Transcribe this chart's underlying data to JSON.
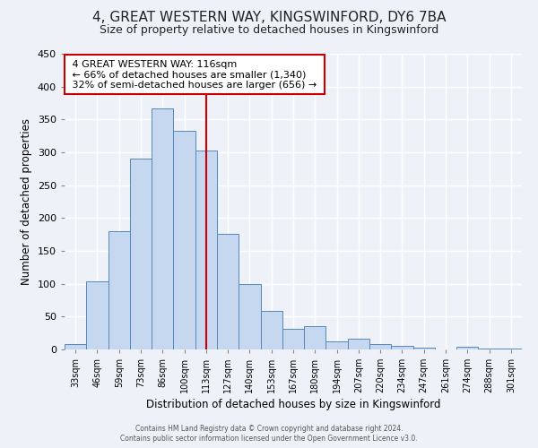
{
  "title": "4, GREAT WESTERN WAY, KINGSWINFORD, DY6 7BA",
  "subtitle": "Size of property relative to detached houses in Kingswinford",
  "xlabel": "Distribution of detached houses by size in Kingswinford",
  "ylabel": "Number of detached properties",
  "bar_labels": [
    "33sqm",
    "46sqm",
    "59sqm",
    "73sqm",
    "86sqm",
    "100sqm",
    "113sqm",
    "127sqm",
    "140sqm",
    "153sqm",
    "167sqm",
    "180sqm",
    "194sqm",
    "207sqm",
    "220sqm",
    "234sqm",
    "247sqm",
    "261sqm",
    "274sqm",
    "288sqm",
    "301sqm"
  ],
  "bar_values": [
    8,
    103,
    180,
    290,
    367,
    333,
    303,
    176,
    100,
    58,
    32,
    35,
    12,
    16,
    8,
    5,
    3,
    0,
    4,
    2,
    2
  ],
  "bar_color": "#c5d8f0",
  "bar_edge_color": "#5588bb",
  "ylim": [
    0,
    450
  ],
  "yticks": [
    0,
    50,
    100,
    150,
    200,
    250,
    300,
    350,
    400,
    450
  ],
  "vline_x": 6,
  "vline_color": "#cc0000",
  "annotation_title": "4 GREAT WESTERN WAY: 116sqm",
  "annotation_line1": "← 66% of detached houses are smaller (1,340)",
  "annotation_line2": "32% of semi-detached houses are larger (656) →",
  "annotation_box_color": "#ffffff",
  "annotation_box_edge": "#cc0000",
  "footer1": "Contains HM Land Registry data © Crown copyright and database right 2024.",
  "footer2": "Contains public sector information licensed under the Open Government Licence v3.0.",
  "background_color": "#eef2f8",
  "plot_bg_color": "#eef2f8",
  "grid_color": "#ffffff",
  "title_fontsize": 11,
  "subtitle_fontsize": 9
}
